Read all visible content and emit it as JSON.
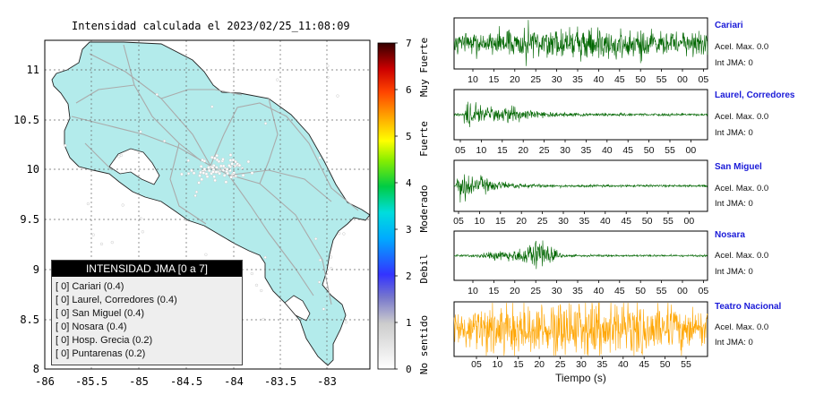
{
  "map": {
    "title": "Intensidad calculada el 2023/02/25_11:08:09",
    "lon_ticks": [
      "-86",
      "-85.5",
      "-85",
      "-84.5",
      "-84",
      "-83.5",
      "-83"
    ],
    "lat_ticks": [
      "11",
      "10.5",
      "10",
      "9.5",
      "9",
      "8.5",
      "8"
    ],
    "land_color": "#b3ebeb",
    "ocean_color": "#ffffff"
  },
  "legend": {
    "title": "INTENSIDAD JMA [0 a 7]",
    "items": [
      "[ 0]  Cariari (0.4)",
      "[ 0]  Laurel, Corredores (0.4)",
      "[ 0]  San Miguel (0.4)",
      "[ 0]  Nosara (0.4)",
      "[ 0]  Hosp. Grecia (0.2)",
      "[ 0]  Puntarenas (0.2)"
    ]
  },
  "colorbar": {
    "ticks": [
      "0",
      "1",
      "2",
      "3",
      "4",
      "5",
      "6",
      "7"
    ],
    "categories": [
      "No sentido",
      "Debil",
      "Moderado",
      "Fuerte",
      "Muy Fuerte"
    ]
  },
  "chart_data": [
    {
      "type": "line",
      "name": "Cariari",
      "xticks": [
        "10",
        "15",
        "20",
        "25",
        "30",
        "35",
        "40",
        "45",
        "50",
        "55",
        "00",
        "05"
      ],
      "acel_label": "Acel. Max. 0.0",
      "int_label": "Int JMA: 0",
      "color": "#006600"
    },
    {
      "type": "line",
      "name": "Laurel, Corredores",
      "xticks": [
        "05",
        "10",
        "15",
        "20",
        "25",
        "30",
        "35",
        "40",
        "45",
        "50",
        "55",
        "00"
      ],
      "acel_label": "Acel. Max. 0.0",
      "int_label": "Int JMA: 0",
      "color": "#006600"
    },
    {
      "type": "line",
      "name": "San Miguel",
      "xticks": [
        "05",
        "10",
        "15",
        "20",
        "25",
        "30",
        "35",
        "40",
        "45",
        "50",
        "55",
        "00"
      ],
      "acel_label": "Acel. Max. 0.0",
      "int_label": "Int JMA: 0",
      "color": "#006600"
    },
    {
      "type": "line",
      "name": "Nosara",
      "xticks": [
        "10",
        "15",
        "20",
        "25",
        "30",
        "35",
        "40",
        "45",
        "50",
        "55",
        "00",
        "05"
      ],
      "acel_label": "Acel. Max. 0.0",
      "int_label": "Int JMA: 0",
      "color": "#006600"
    },
    {
      "type": "line",
      "name": "Teatro Nacional",
      "xticks": [
        "05",
        "10",
        "15",
        "20",
        "25",
        "30",
        "35",
        "40",
        "45",
        "50",
        "55"
      ],
      "acel_label": "Acel. Max. 0.0",
      "int_label": "Int JMA: 0",
      "color": "#ffa500",
      "xlabel": "Tiempo (s)"
    }
  ]
}
